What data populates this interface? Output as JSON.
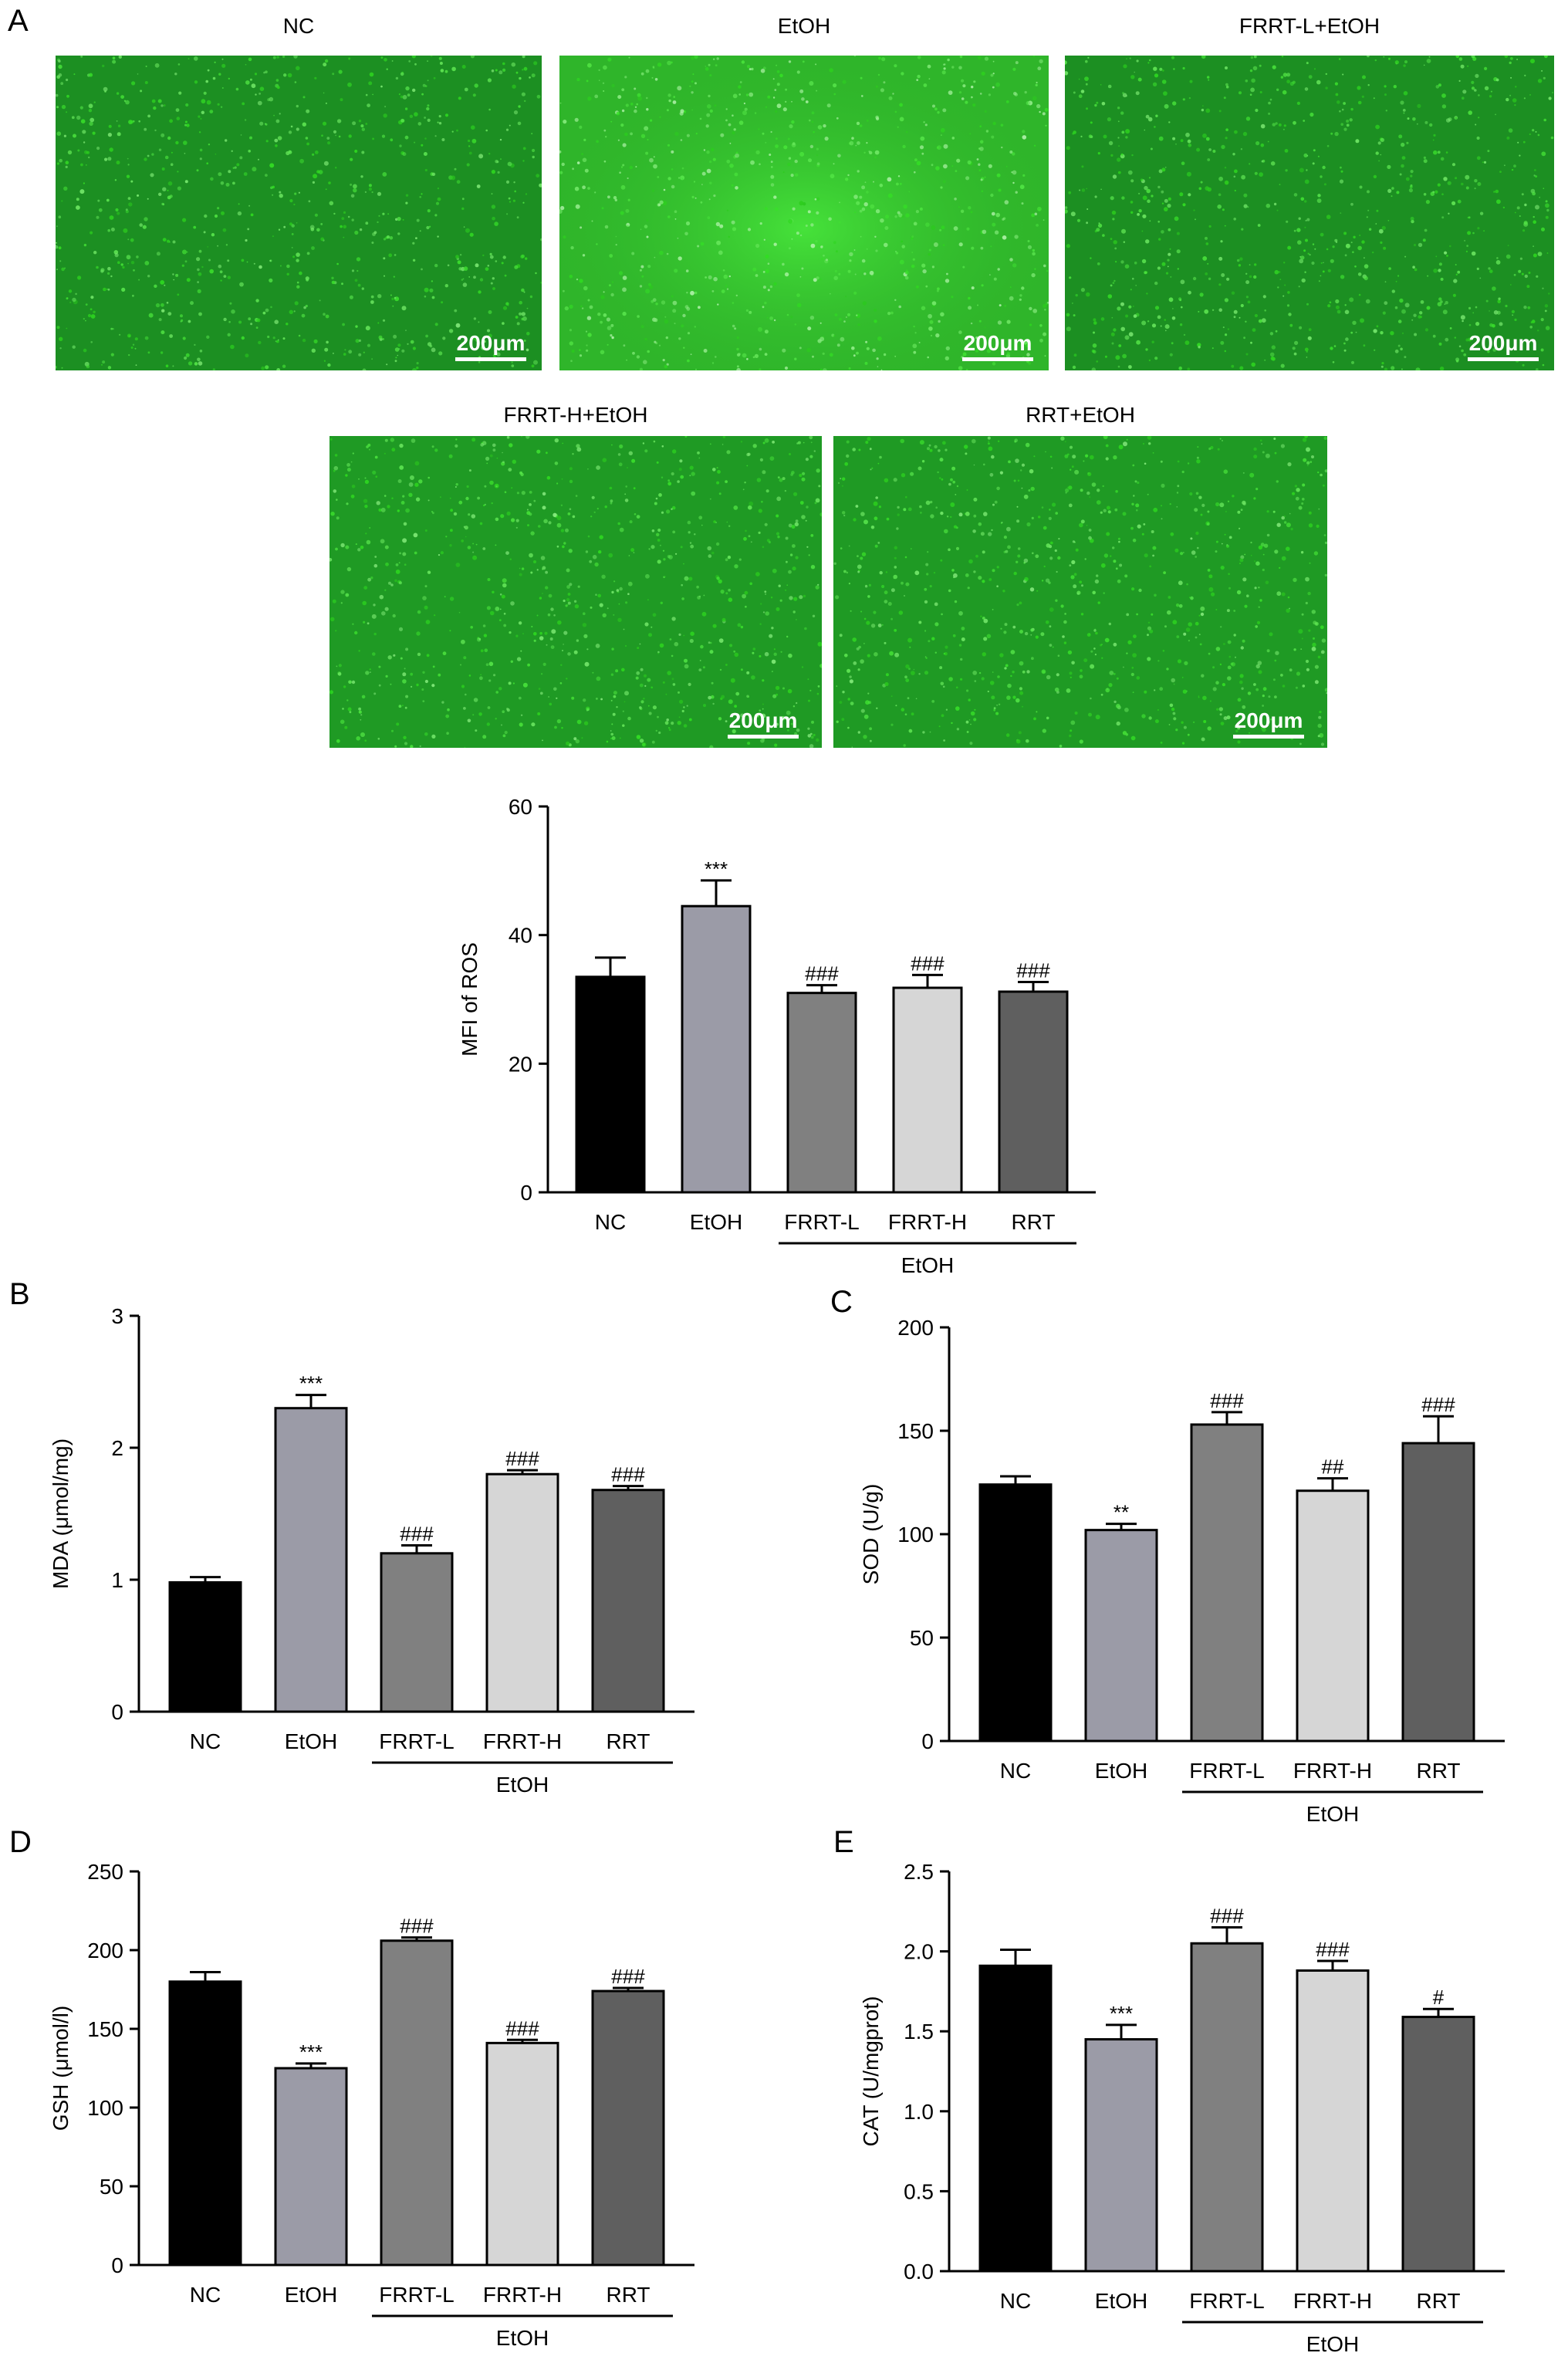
{
  "panels": [
    {
      "id": "A",
      "letter": "A"
    },
    {
      "id": "B",
      "letter": "B"
    },
    {
      "id": "C",
      "letter": "C"
    },
    {
      "id": "D",
      "letter": "D"
    },
    {
      "id": "E",
      "letter": "E"
    }
  ],
  "micrographs": [
    {
      "title": "NC",
      "scale_label": "200μm",
      "intensity": 0.45
    },
    {
      "title": "EtOH",
      "scale_label": "200μm",
      "intensity": 0.95
    },
    {
      "title": "FRRT-L+EtOH",
      "scale_label": "200μm",
      "intensity": 0.4
    },
    {
      "title": "FRRT-H+EtOH",
      "scale_label": "200μm",
      "intensity": 0.5
    },
    {
      "title": "RRT+EtOH",
      "scale_label": "200μm",
      "intensity": 0.5
    }
  ],
  "colors": {
    "NC": "#000000",
    "EtOH": "#9b9ba7",
    "FRRT-L": "#808080",
    "FRRT-H": "#d6d6d6",
    "RRT": "#5f5f5f",
    "fluorescence": "#1fa81f"
  },
  "chart_data": [
    {
      "id": "ros",
      "type": "bar",
      "panel": "A",
      "categories": [
        "NC",
        "EtOH",
        "FRRT-L",
        "FRRT-H",
        "RRT"
      ],
      "values": [
        33.5,
        44.5,
        31.0,
        31.8,
        31.2
      ],
      "errors": [
        3.0,
        4.0,
        1.2,
        2.0,
        1.5
      ],
      "significance": [
        "",
        "***",
        "###",
        "###",
        "###"
      ],
      "ylabel": "MFI of ROS",
      "ylim": [
        0,
        60
      ],
      "yticks": [
        0,
        20,
        40,
        60
      ],
      "group_label": "EtOH",
      "grid": false
    },
    {
      "id": "mda",
      "type": "bar",
      "panel": "B",
      "categories": [
        "NC",
        "EtOH",
        "FRRT-L",
        "FRRT-H",
        "RRT"
      ],
      "values": [
        0.98,
        2.3,
        1.2,
        1.8,
        1.68
      ],
      "errors": [
        0.04,
        0.1,
        0.06,
        0.03,
        0.03
      ],
      "significance": [
        "",
        "***",
        "###",
        "###",
        "###"
      ],
      "ylabel": "MDA (μmol/mg)",
      "ylim": [
        0,
        3
      ],
      "yticks": [
        0,
        1,
        2,
        3
      ],
      "group_label": "EtOH",
      "grid": false
    },
    {
      "id": "sod",
      "type": "bar",
      "panel": "C",
      "categories": [
        "NC",
        "EtOH",
        "FRRT-L",
        "FRRT-H",
        "RRT"
      ],
      "values": [
        124,
        102,
        153,
        121,
        144
      ],
      "errors": [
        4,
        3,
        6,
        6,
        13
      ],
      "significance": [
        "",
        "**",
        "###",
        "##",
        "###"
      ],
      "ylabel": "SOD (U/g)",
      "ylim": [
        0,
        200
      ],
      "yticks": [
        0,
        50,
        100,
        150,
        200
      ],
      "group_label": "EtOH",
      "grid": false
    },
    {
      "id": "gsh",
      "type": "bar",
      "panel": "D",
      "categories": [
        "NC",
        "EtOH",
        "FRRT-L",
        "FRRT-H",
        "RRT"
      ],
      "values": [
        180,
        125,
        206,
        141,
        174
      ],
      "errors": [
        6,
        3,
        2,
        2,
        2
      ],
      "significance": [
        "",
        "***",
        "###",
        "###",
        "###"
      ],
      "ylabel": "GSH (μmol/l)",
      "ylim": [
        0,
        250
      ],
      "yticks": [
        0,
        50,
        100,
        150,
        200,
        250
      ],
      "group_label": "EtOH",
      "grid": false
    },
    {
      "id": "cat",
      "type": "bar",
      "panel": "E",
      "categories": [
        "NC",
        "EtOH",
        "FRRT-L",
        "FRRT-H",
        "RRT"
      ],
      "values": [
        1.91,
        1.45,
        2.05,
        1.88,
        1.59
      ],
      "errors": [
        0.1,
        0.09,
        0.1,
        0.06,
        0.05
      ],
      "significance": [
        "",
        "***",
        "###",
        "###",
        "#"
      ],
      "ylabel": "CAT (U/mgprot)",
      "ylim": [
        0,
        2.5
      ],
      "yticks": [
        0.0,
        0.5,
        1.0,
        1.5,
        2.0,
        2.5
      ],
      "ytick_decimals": 1,
      "group_label": "EtOH",
      "grid": false
    }
  ]
}
